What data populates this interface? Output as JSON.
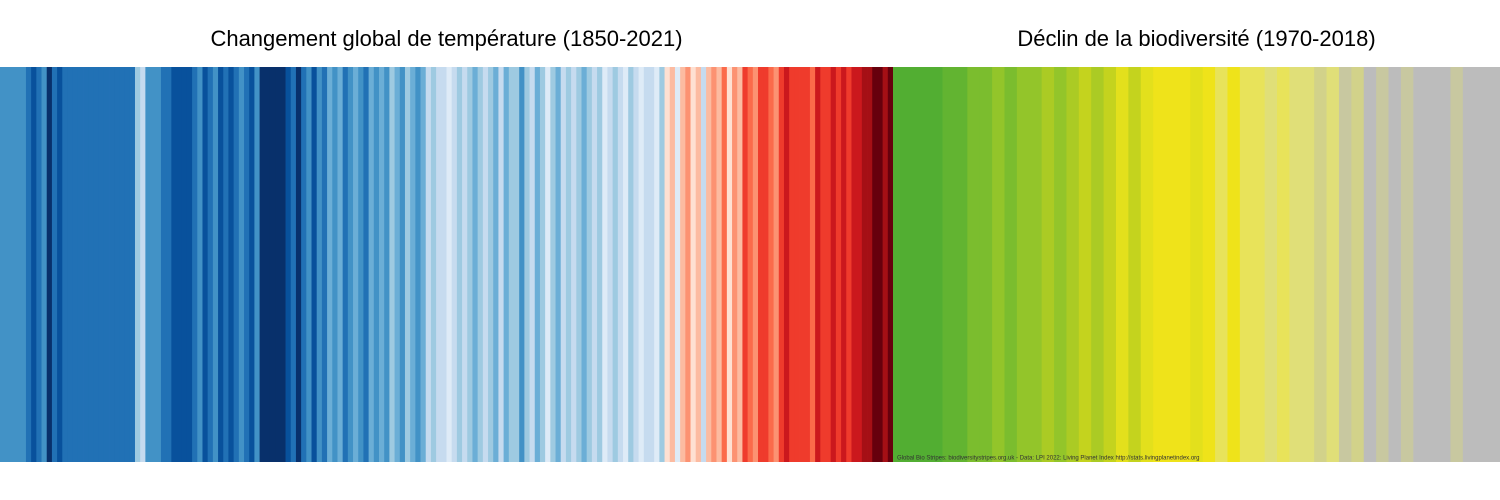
{
  "chart_data": [
    {
      "type": "stripes",
      "title": "Changement global de température (1850-2021)",
      "stripes": [
        "#4292c6",
        "#4292c6",
        "#4292c6",
        "#4292c6",
        "#4292c6",
        "#2171b5",
        "#08519c",
        "#2171b5",
        "#4292c6",
        "#08306b",
        "#2171b5",
        "#08519c",
        "#2171b5",
        "#2171b5",
        "#2171b5",
        "#2171b5",
        "#2171b5",
        "#2171b5",
        "#2171b5",
        "#2171b5",
        "#2171b5",
        "#2171b5",
        "#2171b5",
        "#2171b5",
        "#2171b5",
        "#2171b5",
        "#9ecae1",
        "#c6dbef",
        "#4292c6",
        "#4292c6",
        "#4292c6",
        "#2171b5",
        "#2171b5",
        "#08519c",
        "#08519c",
        "#08519c",
        "#08519c",
        "#2171b5",
        "#4292c6",
        "#08519c",
        "#2171b5",
        "#4292c6",
        "#08519c",
        "#2171b5",
        "#08519c",
        "#2171b5",
        "#4292c6",
        "#2171b5",
        "#08519c",
        "#4292c6",
        "#08306b",
        "#08306b",
        "#08306b",
        "#08306b",
        "#08306b",
        "#08519c",
        "#2171b5",
        "#08306b",
        "#2171b5",
        "#4292c6",
        "#08519c",
        "#4292c6",
        "#2171b5",
        "#6baed6",
        "#4292c6",
        "#6baed6",
        "#2171b5",
        "#4292c6",
        "#6baed6",
        "#4292c6",
        "#2171b5",
        "#6baed6",
        "#4292c6",
        "#6baed6",
        "#4292c6",
        "#9ecae1",
        "#6baed6",
        "#4292c6",
        "#9ecae1",
        "#6baed6",
        "#4292c6",
        "#6baed6",
        "#c6dbef",
        "#9ecae1",
        "#c6dbef",
        "#c6dbef",
        "#deebf7",
        "#c6dbef",
        "#9ecae1",
        "#c6dbef",
        "#9ecae1",
        "#6baed6",
        "#9ecae1",
        "#c6dbef",
        "#9ecae1",
        "#6baed6",
        "#c6dbef",
        "#6baed6",
        "#9ecae1",
        "#9ecae1",
        "#4292c6",
        "#9ecae1",
        "#c6dbef",
        "#6baed6",
        "#9ecae1",
        "#deebf7",
        "#9ecae1",
        "#6baed6",
        "#c6dbef",
        "#9ecae1",
        "#c6dbef",
        "#9ecae1",
        "#6baed6",
        "#9ecae1",
        "#c6dbef",
        "#9ecae1",
        "#deebf7",
        "#c6dbef",
        "#9ecae1",
        "#c6dbef",
        "#deebf7",
        "#9ecae1",
        "#c6dbef",
        "#deebf7",
        "#c6dbef",
        "#c6dbef",
        "#deebf7",
        "#9ecae1",
        "#fee0d2",
        "#fcbba1",
        "#deebf7",
        "#fcbba1",
        "#fc9272",
        "#fee0d2",
        "#fcbba1",
        "#c6dbef",
        "#fcbba1",
        "#fc9272",
        "#fcbba1",
        "#fb6a4a",
        "#fee0d2",
        "#fc9272",
        "#fcbba1",
        "#ef3b2c",
        "#fb6a4a",
        "#fc9272",
        "#ef3b2c",
        "#ef3b2c",
        "#fb6a4a",
        "#fc9272",
        "#ef3b2c",
        "#cb181d",
        "#ef3b2c",
        "#ef3b2c",
        "#ef3b2c",
        "#ef3b2c",
        "#fb6a4a",
        "#cb181d",
        "#ef3b2c",
        "#ef3b2c",
        "#cb181d",
        "#ef3b2c",
        "#cb181d",
        "#ef3b2c",
        "#cb181d",
        "#cb181d",
        "#a50f15",
        "#a50f15",
        "#67000d",
        "#67000d",
        "#a50f15",
        "#67000d"
      ]
    },
    {
      "type": "stripes",
      "title": "Déclin de la biodiversité (1970-2018)",
      "credit": "Global Bio Stripes: biodiversitystripes.org.uk - Data: LPI 2022: Living Planet Index http://stats.livingplanetindex.org",
      "stripes": [
        "#52ae32",
        "#52ae32",
        "#52ae32",
        "#52ae32",
        "#62b431",
        "#62b431",
        "#7bbd2e",
        "#7bbd2e",
        "#93c52a",
        "#7bbd2e",
        "#93c52a",
        "#93c52a",
        "#abcb24",
        "#93c52a",
        "#abcb24",
        "#c4d31e",
        "#abcb24",
        "#c4d31e",
        "#e3e01c",
        "#c4d31e",
        "#e3e01c",
        "#efe31a",
        "#efe31a",
        "#efe31a",
        "#e3e01c",
        "#efe31a",
        "#e8e35a",
        "#efe31a",
        "#e8e35a",
        "#e8e35a",
        "#e0df78",
        "#e8e35a",
        "#e0df78",
        "#e0df78",
        "#d2d28a",
        "#e0df78",
        "#c8c8a0",
        "#d2d28a",
        "#bcbcbc",
        "#c8c8a0",
        "#bcbcbc",
        "#c8c8a0",
        "#bcbcbc",
        "#bcbcbc",
        "#bcbcbc",
        "#c8c8a0",
        "#bcbcbc",
        "#bcbcbc",
        "#bcbcbc"
      ]
    }
  ]
}
